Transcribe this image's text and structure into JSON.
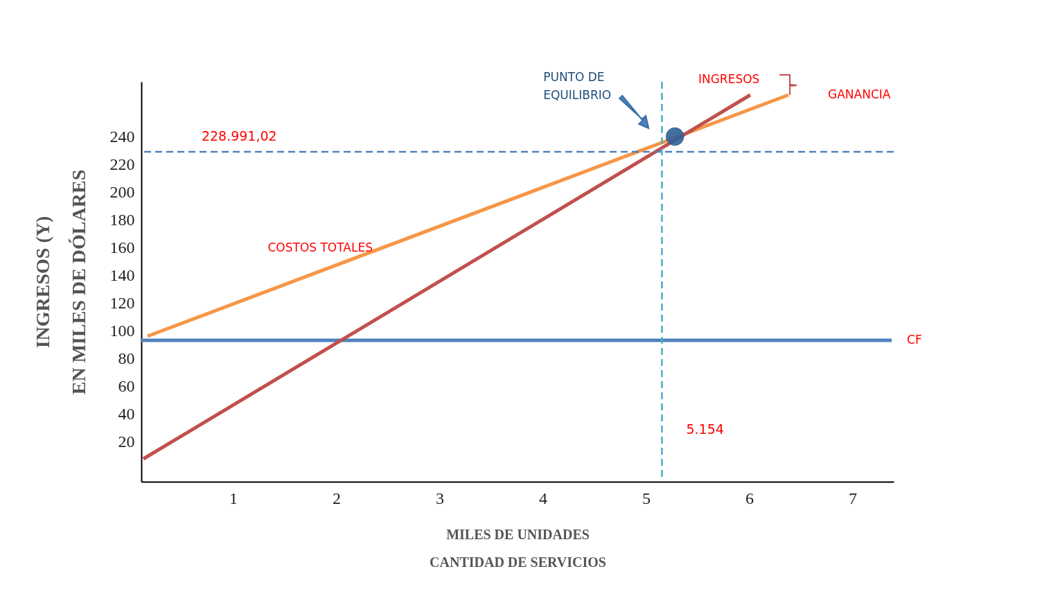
{
  "chart_data": {
    "type": "line",
    "xlabel": "MILES DE UNIDADES\nCANTIDAD DE SERVICIOS",
    "ylabel": "INGRESOS (Y)\nEN MILES DE DÓLARES",
    "xlim": [
      0.11,
      7.4
    ],
    "ylim": [
      -9,
      279.5
    ],
    "xticks": [
      1,
      2,
      3,
      4,
      5,
      6,
      7
    ],
    "yticks": [
      20,
      40,
      60,
      80,
      100,
      120,
      140,
      160,
      180,
      200,
      220,
      240
    ],
    "grid": false,
    "line_style": "solid",
    "series": [
      {
        "name": "CF",
        "color": "#4f81bd",
        "x": [
          0.11,
          7.38
        ],
        "values": [
          93,
          93
        ]
      },
      {
        "name": "COSTOS TOTALES",
        "color": "#f79646",
        "x": [
          0.17,
          6.38
        ],
        "values": [
          96,
          270
        ]
      },
      {
        "name": "INGRESOS",
        "color": "#c0504d",
        "x": [
          0.13,
          6.01
        ],
        "values": [
          7.5,
          270
        ]
      },
      {
        "type": "scatter",
        "marker": "circle",
        "color": "#2f5f97",
        "x": [
          5.28
        ],
        "values": [
          240
        ]
      }
    ],
    "ref_lines": [
      {
        "axis": "y",
        "value": 228.99102,
        "label": "228.991,02",
        "color": "#4f81bd",
        "line_style": "dashed"
      },
      {
        "axis": "x",
        "value": 5.154,
        "label": "5.154",
        "color": "#4bacc6",
        "line_style": "dashed"
      }
    ],
    "annotations": [
      "PUNTO DE\nEQUILIBRIO",
      "GANANCIA"
    ]
  }
}
